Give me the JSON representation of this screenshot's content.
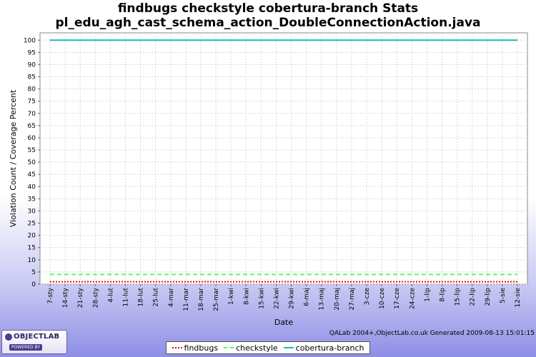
{
  "header": {
    "title_line1": "findbugs checkstyle cobertura-branch  Stats",
    "title_line2": "pl_edu_agh_cast_schema_action_DoubleConnectionAction.java"
  },
  "footer": {
    "generated_note": "QALab 2004+,ObjectLab.co.uk Generated 2009-08-13 15:01:15",
    "logo_text": "OBJECTLAB",
    "logo_sub": "POWERED BY"
  },
  "legend": {
    "items": [
      {
        "label": "findbugs",
        "color": "#ff0000",
        "style": "dotted"
      },
      {
        "label": "checkstyle",
        "color": "#55ff55",
        "style": "dashed"
      },
      {
        "label": "cobertura-branch",
        "color": "#11bbbb",
        "style": "solid"
      }
    ]
  },
  "chart_data": {
    "type": "line",
    "title": "findbugs checkstyle cobertura-branch  Stats\npl_edu_agh_cast_schema_action_DoubleConnectionAction.java",
    "xlabel": "Date",
    "ylabel": "Violation Count / Coverage Percent",
    "ylim": [
      0,
      103
    ],
    "yticks": [
      0,
      5,
      10,
      15,
      20,
      25,
      30,
      35,
      40,
      45,
      50,
      55,
      60,
      65,
      70,
      75,
      80,
      85,
      90,
      95,
      100
    ],
    "categories": [
      "7-sty",
      "14-sty",
      "21-sty",
      "28-sty",
      "4-lut",
      "11-lut",
      "18-lut",
      "25-lut",
      "4-mar",
      "11-mar",
      "18-mar",
      "25-mar",
      "1-kwi",
      "8-kwi",
      "15-kwi",
      "22-kwi",
      "29-kwi",
      "6-maj",
      "13-maj",
      "20-maj",
      "27-maj",
      "3-cze",
      "10-cze",
      "17-cze",
      "24-cze",
      "1-lip",
      "8-lip",
      "15-lip",
      "22-lip",
      "29-lip",
      "5-sie",
      "12-sie"
    ],
    "grid": true,
    "legend_position": "bottom",
    "series": [
      {
        "name": "findbugs",
        "color": "#ff0000",
        "dash": "dotted",
        "values": [
          1,
          1,
          1,
          1,
          1,
          1,
          1,
          1,
          1,
          1,
          1,
          1,
          1,
          1,
          1,
          1,
          1,
          1,
          1,
          1,
          1,
          1,
          1,
          1,
          1,
          1,
          1,
          1,
          1,
          1,
          1,
          1
        ]
      },
      {
        "name": "checkstyle",
        "color": "#55ff55",
        "dash": "dashed",
        "values": [
          4,
          4,
          4,
          4,
          4,
          4,
          4,
          4,
          4,
          4,
          4,
          4,
          4,
          4,
          4,
          4,
          4,
          4,
          4,
          4,
          4,
          4,
          4,
          4,
          4,
          4,
          4,
          4,
          4,
          4,
          4,
          4
        ]
      },
      {
        "name": "cobertura-branch",
        "color": "#11bbbb",
        "dash": "solid",
        "values": [
          100,
          100,
          100,
          100,
          100,
          100,
          100,
          100,
          100,
          100,
          100,
          100,
          100,
          100,
          100,
          100,
          100,
          100,
          100,
          100,
          100,
          100,
          100,
          100,
          100,
          100,
          100,
          100,
          100,
          100,
          100,
          100
        ]
      }
    ]
  }
}
